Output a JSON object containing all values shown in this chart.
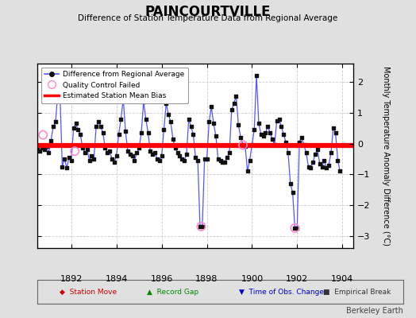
{
  "title": "PAINCOURTVILLE",
  "subtitle": "Difference of Station Temperature Data from Regional Average",
  "ylabel": "Monthly Temperature Anomaly Difference (°C)",
  "xlim": [
    1890.5,
    1904.5
  ],
  "ylim": [
    -3.4,
    2.6
  ],
  "yticks": [
    -3,
    -2,
    -1,
    0,
    1,
    2
  ],
  "xticks": [
    1892,
    1894,
    1896,
    1898,
    1900,
    1902,
    1904
  ],
  "mean_bias": -0.07,
  "background_color": "#e0e0e0",
  "plot_bg_color": "#ffffff",
  "line_color": "#5555ff",
  "dot_color": "#111111",
  "bias_color": "#ff0000",
  "qc_color": "#ff88cc",
  "credit": "Berkeley Earth",
  "time_series": [
    1890.5,
    -0.18,
    1890.6,
    -0.25,
    1890.7,
    -0.15,
    1890.8,
    -0.2,
    1890.9,
    -0.1,
    1891.0,
    -0.3,
    1891.1,
    0.1,
    1891.2,
    0.55,
    1891.3,
    0.7,
    1891.4,
    1.6,
    1891.5,
    1.55,
    1891.6,
    -0.75,
    1891.7,
    -0.5,
    1891.8,
    -0.8,
    1891.9,
    -0.45,
    1892.0,
    -0.55,
    1892.1,
    0.5,
    1892.2,
    0.65,
    1892.3,
    0.45,
    1892.4,
    0.3,
    1892.5,
    -0.15,
    1892.6,
    -0.3,
    1892.7,
    -0.2,
    1892.8,
    -0.55,
    1892.9,
    -0.4,
    1893.0,
    -0.5,
    1893.1,
    0.55,
    1893.2,
    0.7,
    1893.3,
    0.55,
    1893.4,
    0.35,
    1893.5,
    -0.15,
    1893.6,
    -0.3,
    1893.7,
    -0.25,
    1893.8,
    -0.5,
    1893.9,
    -0.6,
    1894.0,
    -0.4,
    1894.1,
    0.3,
    1894.2,
    0.8,
    1894.3,
    1.45,
    1894.4,
    0.4,
    1894.5,
    -0.25,
    1894.6,
    -0.35,
    1894.7,
    -0.4,
    1894.8,
    -0.55,
    1894.9,
    -0.3,
    1895.0,
    -0.15,
    1895.1,
    0.35,
    1895.2,
    1.35,
    1895.3,
    0.8,
    1895.4,
    0.35,
    1895.5,
    -0.25,
    1895.6,
    -0.35,
    1895.7,
    -0.3,
    1895.8,
    -0.5,
    1895.9,
    -0.55,
    1896.0,
    -0.4,
    1896.1,
    0.45,
    1896.2,
    1.3,
    1896.3,
    0.95,
    1896.4,
    0.7,
    1896.5,
    0.15,
    1896.6,
    -0.15,
    1896.7,
    -0.3,
    1896.8,
    -0.4,
    1896.9,
    -0.5,
    1897.0,
    -0.55,
    1897.1,
    -0.35,
    1897.2,
    0.8,
    1897.3,
    0.55,
    1897.4,
    0.3,
    1897.5,
    -0.45,
    1897.6,
    -0.55,
    1897.7,
    -2.7,
    1897.8,
    -2.7,
    1897.9,
    -0.5,
    1898.0,
    -0.5,
    1898.1,
    0.7,
    1898.2,
    1.2,
    1898.3,
    0.65,
    1898.4,
    0.25,
    1898.5,
    -0.5,
    1898.6,
    -0.55,
    1898.7,
    -0.6,
    1898.8,
    -0.6,
    1898.9,
    -0.45,
    1899.0,
    -0.3,
    1899.1,
    1.1,
    1899.2,
    1.3,
    1899.3,
    1.55,
    1899.4,
    0.6,
    1899.5,
    0.2,
    1899.6,
    -0.05,
    1899.7,
    -0.1,
    1899.8,
    -0.9,
    1899.9,
    -0.55,
    1900.0,
    -0.05,
    1900.1,
    0.45,
    1900.2,
    2.2,
    1900.3,
    0.65,
    1900.4,
    0.3,
    1900.5,
    0.25,
    1900.6,
    0.35,
    1900.7,
    0.55,
    1900.8,
    0.35,
    1900.9,
    0.15,
    1901.0,
    -0.05,
    1901.1,
    0.75,
    1901.2,
    0.8,
    1901.3,
    0.55,
    1901.4,
    0.3,
    1901.5,
    0.05,
    1901.6,
    -0.3,
    1901.7,
    -1.3,
    1901.8,
    -1.6,
    1901.9,
    -2.75,
    1902.0,
    -2.75,
    1902.1,
    0.05,
    1902.2,
    0.2,
    1902.3,
    -0.05,
    1902.4,
    -0.3,
    1902.5,
    -0.75,
    1902.6,
    -0.8,
    1902.7,
    -0.6,
    1902.8,
    -0.35,
    1902.9,
    -0.2,
    1903.0,
    -0.65,
    1903.1,
    -0.75,
    1903.2,
    -0.55,
    1903.3,
    -0.8,
    1903.4,
    -0.7,
    1903.5,
    -0.3,
    1903.6,
    0.5,
    1903.7,
    0.35,
    1903.8,
    -0.55,
    1903.9,
    -0.9
  ],
  "qc_failed": [
    [
      1890.75,
      0.28
    ],
    [
      1892.15,
      -0.25
    ],
    [
      1897.75,
      -2.7
    ],
    [
      1899.6,
      -0.05
    ],
    [
      1901.9,
      -2.75
    ]
  ],
  "legend_items": [
    {
      "label": "Difference from Regional Average",
      "type": "line"
    },
    {
      "label": "Quality Control Failed",
      "type": "qc"
    },
    {
      "label": "Estimated Station Mean Bias",
      "type": "bias"
    }
  ],
  "bottom_legend": [
    {
      "symbol": "◆",
      "label": "Station Move",
      "color": "#cc0000"
    },
    {
      "symbol": "▲",
      "label": "Record Gap",
      "color": "#008800"
    },
    {
      "symbol": "▼",
      "label": "Time of Obs. Change",
      "color": "#0000cc"
    },
    {
      "symbol": "■",
      "label": "Empirical Break",
      "color": "#333333"
    }
  ]
}
